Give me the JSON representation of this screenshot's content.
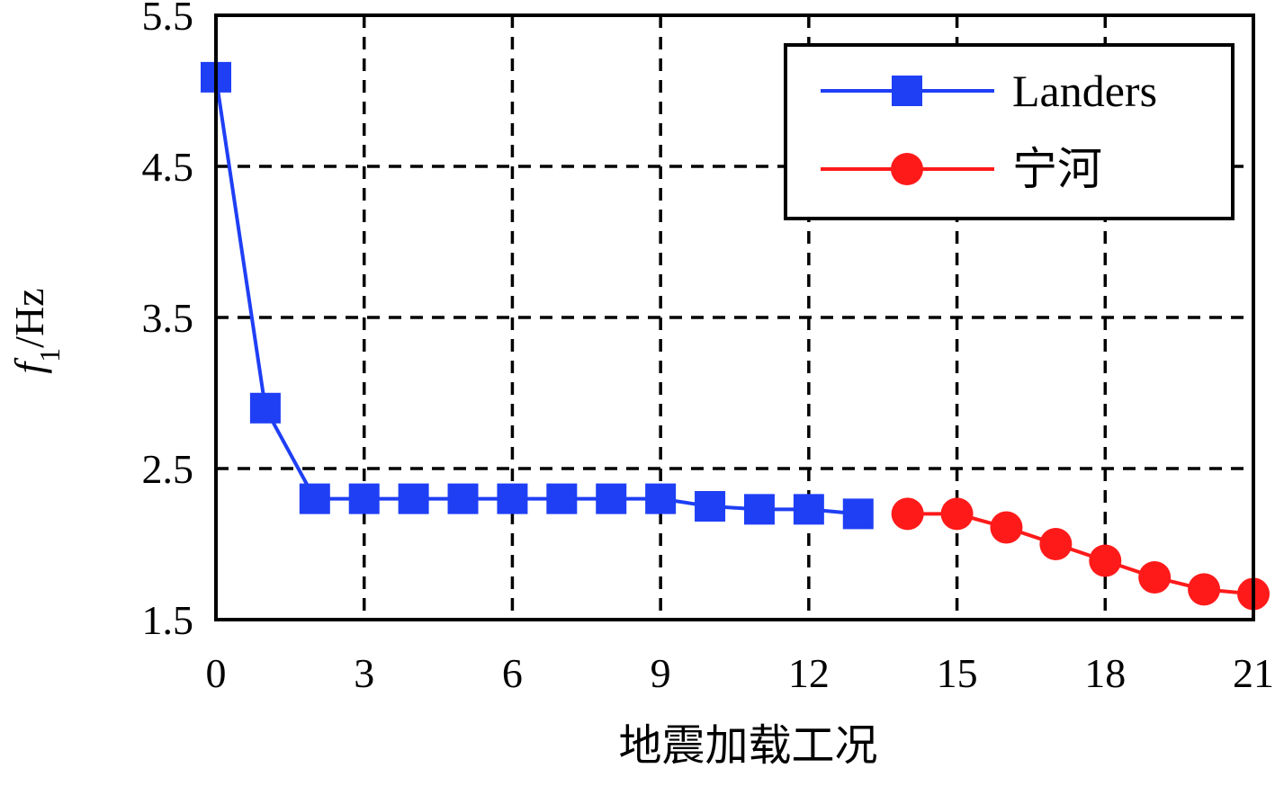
{
  "chart_data": {
    "type": "line",
    "xlabel": "地震加载工况",
    "ylabel": {
      "main": "f",
      "sub": "1",
      "unit": "/Hz"
    },
    "xlim": [
      0,
      21
    ],
    "ylim": [
      1.5,
      5.5
    ],
    "xticks": [
      0,
      3,
      6,
      9,
      12,
      15,
      18,
      21
    ],
    "xtick_labels": [
      "0",
      "3",
      "6",
      "9",
      "12",
      "15",
      "18",
      "21"
    ],
    "yticks": [
      1.5,
      2.5,
      3.5,
      4.5,
      5.5
    ],
    "ytick_labels": [
      "1.5",
      "2.5",
      "3.5",
      "4.5",
      "5.5"
    ],
    "grid": "dashed, on",
    "legend_position": "top-right",
    "series": [
      {
        "name": "Landers",
        "color": "#1f3ff5",
        "marker": "square",
        "x": [
          0,
          1,
          2,
          3,
          4,
          5,
          6,
          7,
          8,
          9,
          10,
          11,
          12,
          13
        ],
        "y": [
          5.09,
          2.9,
          2.3,
          2.3,
          2.3,
          2.3,
          2.3,
          2.3,
          2.3,
          2.3,
          2.25,
          2.23,
          2.23,
          2.2
        ]
      },
      {
        "name": "宁河",
        "color": "#ff1a1a",
        "marker": "circle",
        "x": [
          14,
          15,
          16,
          17,
          18,
          19,
          20,
          21
        ],
        "y": [
          2.2,
          2.2,
          2.11,
          2.0,
          1.89,
          1.78,
          1.7,
          1.67
        ]
      }
    ]
  }
}
